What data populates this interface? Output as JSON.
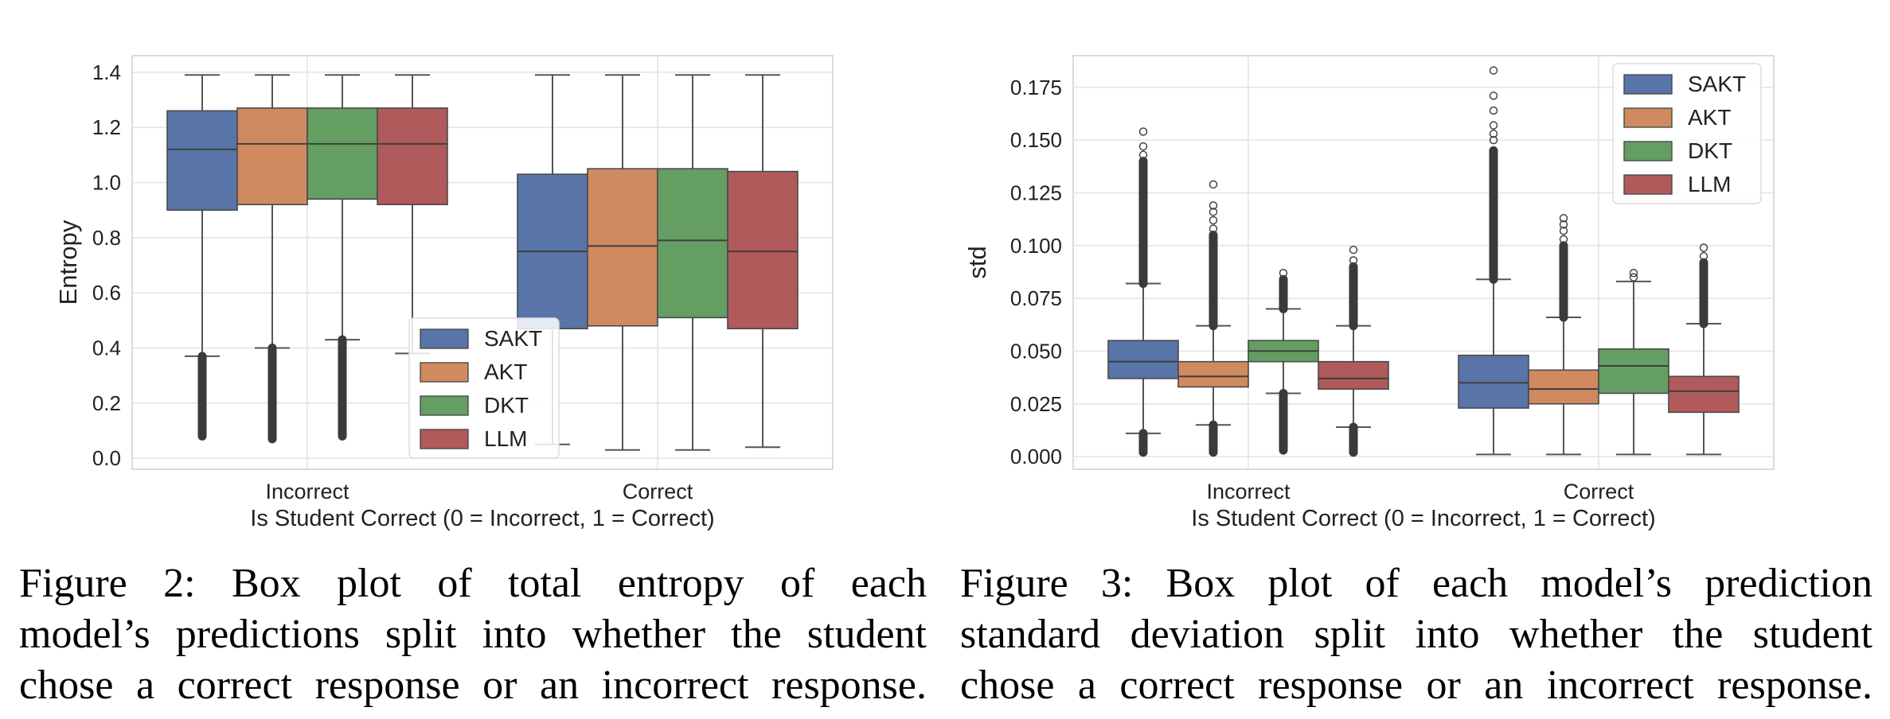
{
  "colors": {
    "SAKT": "#5874a8",
    "AKT": "#cf8a60",
    "DKT": "#649e62",
    "LLM": "#b05a5c",
    "grid": "#e3e3e3",
    "whisker": "#555555"
  },
  "chart_data": [
    {
      "type": "box",
      "title": "",
      "xlabel": "Is Student Correct (0 = Incorrect, 1 = Correct)",
      "ylabel": "Entropy",
      "categories": [
        "Incorrect",
        "Correct"
      ],
      "ylim": [
        -0.04,
        1.46
      ],
      "yticks": [
        0.0,
        0.2,
        0.4,
        0.6,
        0.8,
        1.0,
        1.2,
        1.4
      ],
      "tick_decimals": 1,
      "grid": true,
      "legend": {
        "position": "lower-center",
        "entries": [
          "SAKT",
          "AKT",
          "DKT",
          "LLM"
        ]
      },
      "series": [
        {
          "name": "SAKT",
          "boxes": [
            {
              "whislo": 0.37,
              "q1": 0.9,
              "med": 1.12,
              "q3": 1.26,
              "whishi": 1.39,
              "outliers": {
                "lo": 0.08,
                "hi": 0.37
              }
            },
            {
              "whislo": 0.05,
              "q1": 0.47,
              "med": 0.75,
              "q3": 1.03,
              "whishi": 1.39
            }
          ]
        },
        {
          "name": "AKT",
          "boxes": [
            {
              "whislo": 0.4,
              "q1": 0.92,
              "med": 1.14,
              "q3": 1.27,
              "whishi": 1.39,
              "outliers": {
                "lo": 0.07,
                "hi": 0.4
              }
            },
            {
              "whislo": 0.03,
              "q1": 0.48,
              "med": 0.77,
              "q3": 1.05,
              "whishi": 1.39
            }
          ]
        },
        {
          "name": "DKT",
          "boxes": [
            {
              "whislo": 0.43,
              "q1": 0.94,
              "med": 1.14,
              "q3": 1.27,
              "whishi": 1.39,
              "outliers": {
                "lo": 0.08,
                "hi": 0.43
              }
            },
            {
              "whislo": 0.03,
              "q1": 0.51,
              "med": 0.79,
              "q3": 1.05,
              "whishi": 1.39
            }
          ]
        },
        {
          "name": "LLM",
          "boxes": [
            {
              "whislo": 0.38,
              "q1": 0.92,
              "med": 1.14,
              "q3": 1.27,
              "whishi": 1.39
            },
            {
              "whislo": 0.04,
              "q1": 0.47,
              "med": 0.75,
              "q3": 1.04,
              "whishi": 1.39
            }
          ]
        }
      ]
    },
    {
      "type": "box",
      "title": "",
      "xlabel": "Is Student Correct (0 = Incorrect, 1 = Correct)",
      "ylabel": "std",
      "categories": [
        "Incorrect",
        "Correct"
      ],
      "ylim": [
        -0.006,
        0.19
      ],
      "yticks": [
        0.0,
        0.025,
        0.05,
        0.075,
        0.1,
        0.125,
        0.15,
        0.175
      ],
      "tick_decimals": 3,
      "grid": true,
      "legend": {
        "position": "top-right",
        "entries": [
          "SAKT",
          "AKT",
          "DKT",
          "LLM"
        ]
      },
      "series": [
        {
          "name": "SAKT",
          "boxes": [
            {
              "whislo": 0.011,
              "q1": 0.037,
              "med": 0.045,
              "q3": 0.055,
              "whishi": 0.082,
              "outliers": {
                "lo": 0.002,
                "hi": 0.011,
                "up_lo": 0.082,
                "up_hi": 0.14,
                "scatter": [
                  0.143,
                  0.147,
                  0.154
                ]
              }
            },
            {
              "whislo": 0.001,
              "q1": 0.023,
              "med": 0.035,
              "q3": 0.048,
              "whishi": 0.084,
              "outliers": {
                "up_lo": 0.084,
                "up_hi": 0.145,
                "scatter": [
                  0.15,
                  0.153,
                  0.157,
                  0.164,
                  0.171,
                  0.183
                ]
              }
            }
          ]
        },
        {
          "name": "AKT",
          "boxes": [
            {
              "whislo": 0.015,
              "q1": 0.033,
              "med": 0.038,
              "q3": 0.045,
              "whishi": 0.062,
              "outliers": {
                "lo": 0.002,
                "hi": 0.015,
                "up_lo": 0.062,
                "up_hi": 0.105,
                "scatter": [
                  0.108,
                  0.112,
                  0.116,
                  0.119,
                  0.129
                ]
              }
            },
            {
              "whislo": 0.001,
              "q1": 0.025,
              "med": 0.032,
              "q3": 0.041,
              "whishi": 0.066,
              "outliers": {
                "up_lo": 0.066,
                "up_hi": 0.1,
                "scatter": [
                  0.103,
                  0.107,
                  0.11,
                  0.113
                ]
              }
            }
          ]
        },
        {
          "name": "DKT",
          "boxes": [
            {
              "whislo": 0.03,
              "q1": 0.045,
              "med": 0.05,
              "q3": 0.055,
              "whishi": 0.07,
              "outliers": {
                "lo": 0.003,
                "hi": 0.03,
                "up_lo": 0.07,
                "up_hi": 0.084,
                "scatter": [
                  0.087
                ]
              }
            },
            {
              "whislo": 0.001,
              "q1": 0.03,
              "med": 0.043,
              "q3": 0.051,
              "whishi": 0.083,
              "outliers": {
                "scatter": [
                  0.085,
                  0.087
                ]
              }
            }
          ]
        },
        {
          "name": "LLM",
          "boxes": [
            {
              "whislo": 0.014,
              "q1": 0.032,
              "med": 0.037,
              "q3": 0.045,
              "whishi": 0.062,
              "outliers": {
                "lo": 0.002,
                "hi": 0.014,
                "up_lo": 0.062,
                "up_hi": 0.09,
                "scatter": [
                  0.093,
                  0.098
                ]
              }
            },
            {
              "whislo": 0.001,
              "q1": 0.021,
              "med": 0.031,
              "q3": 0.038,
              "whishi": 0.063,
              "outliers": {
                "up_lo": 0.063,
                "up_hi": 0.092,
                "scatter": [
                  0.095,
                  0.099
                ]
              }
            }
          ]
        }
      ]
    }
  ],
  "captions": {
    "left": [
      "Figure 2:  Box plot of total entropy of each",
      "model’s predictions split into whether the student",
      "chose a correct response or an incorrect response."
    ],
    "right": [
      "Figure 3:  Box plot of each model’s prediction",
      "standard deviation split into whether the student",
      "chose a correct response or an incorrect response."
    ]
  }
}
